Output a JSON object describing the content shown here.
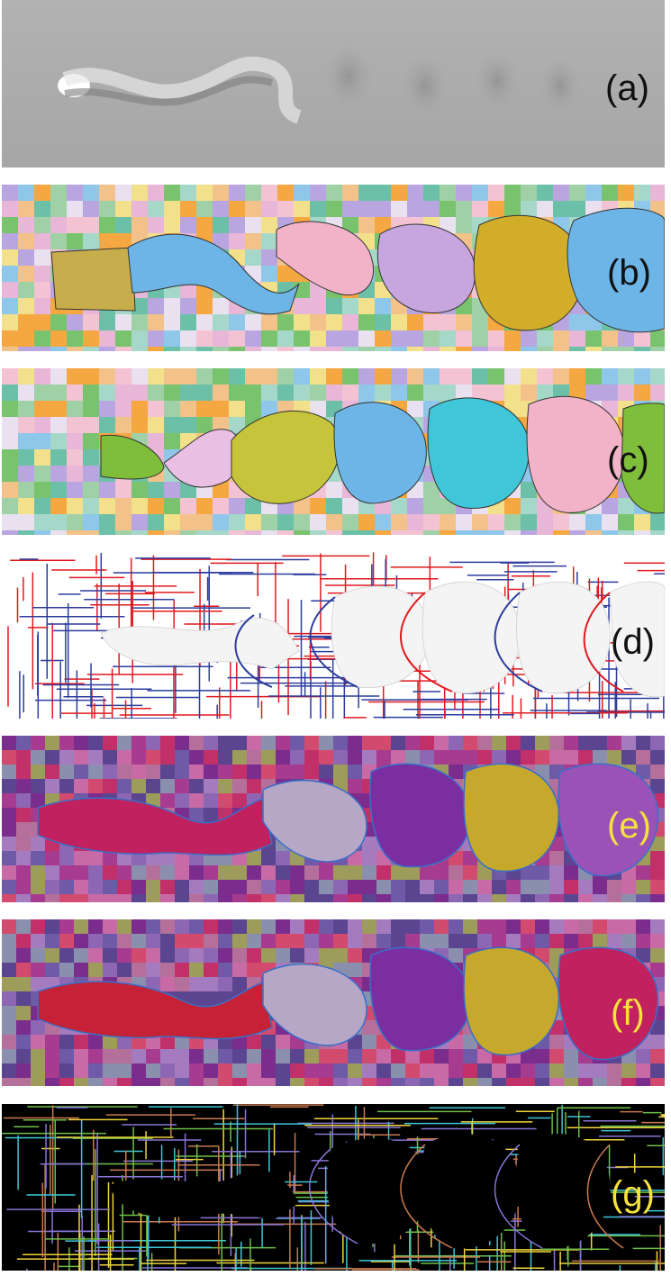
{
  "panels": {
    "a": {
      "label": "(a)",
      "label_color": "#111111"
    },
    "b": {
      "label": "(b)",
      "label_color": "#111111"
    },
    "c": {
      "label": "(c)",
      "label_color": "#111111"
    },
    "d": {
      "label": "(d)",
      "label_color": "#111111"
    },
    "e": {
      "label": "(e)",
      "label_color": "#f6e23c"
    },
    "f": {
      "label": "(f)",
      "label_color": "#f6e23c"
    },
    "g": {
      "label": "(g)",
      "label_color": "#f6e23c"
    }
  },
  "colors": {
    "flow_background": "#a9a9a9",
    "segment_pink": "#f2b3c9",
    "segment_blue": "#6db5e6",
    "segment_lilac": "#c7a6df",
    "segment_gold": "#d1ad2a",
    "segment_cyan": "#3fc6d9",
    "segment_green": "#7fbe3b",
    "segment_olive": "#c6c43a",
    "segment_purple": "#7a2ea0",
    "segment_magenta": "#c1215e",
    "segment_red": "#c52237",
    "boundary_red": "#e0191f",
    "boundary_blue": "#2c3c9e"
  }
}
